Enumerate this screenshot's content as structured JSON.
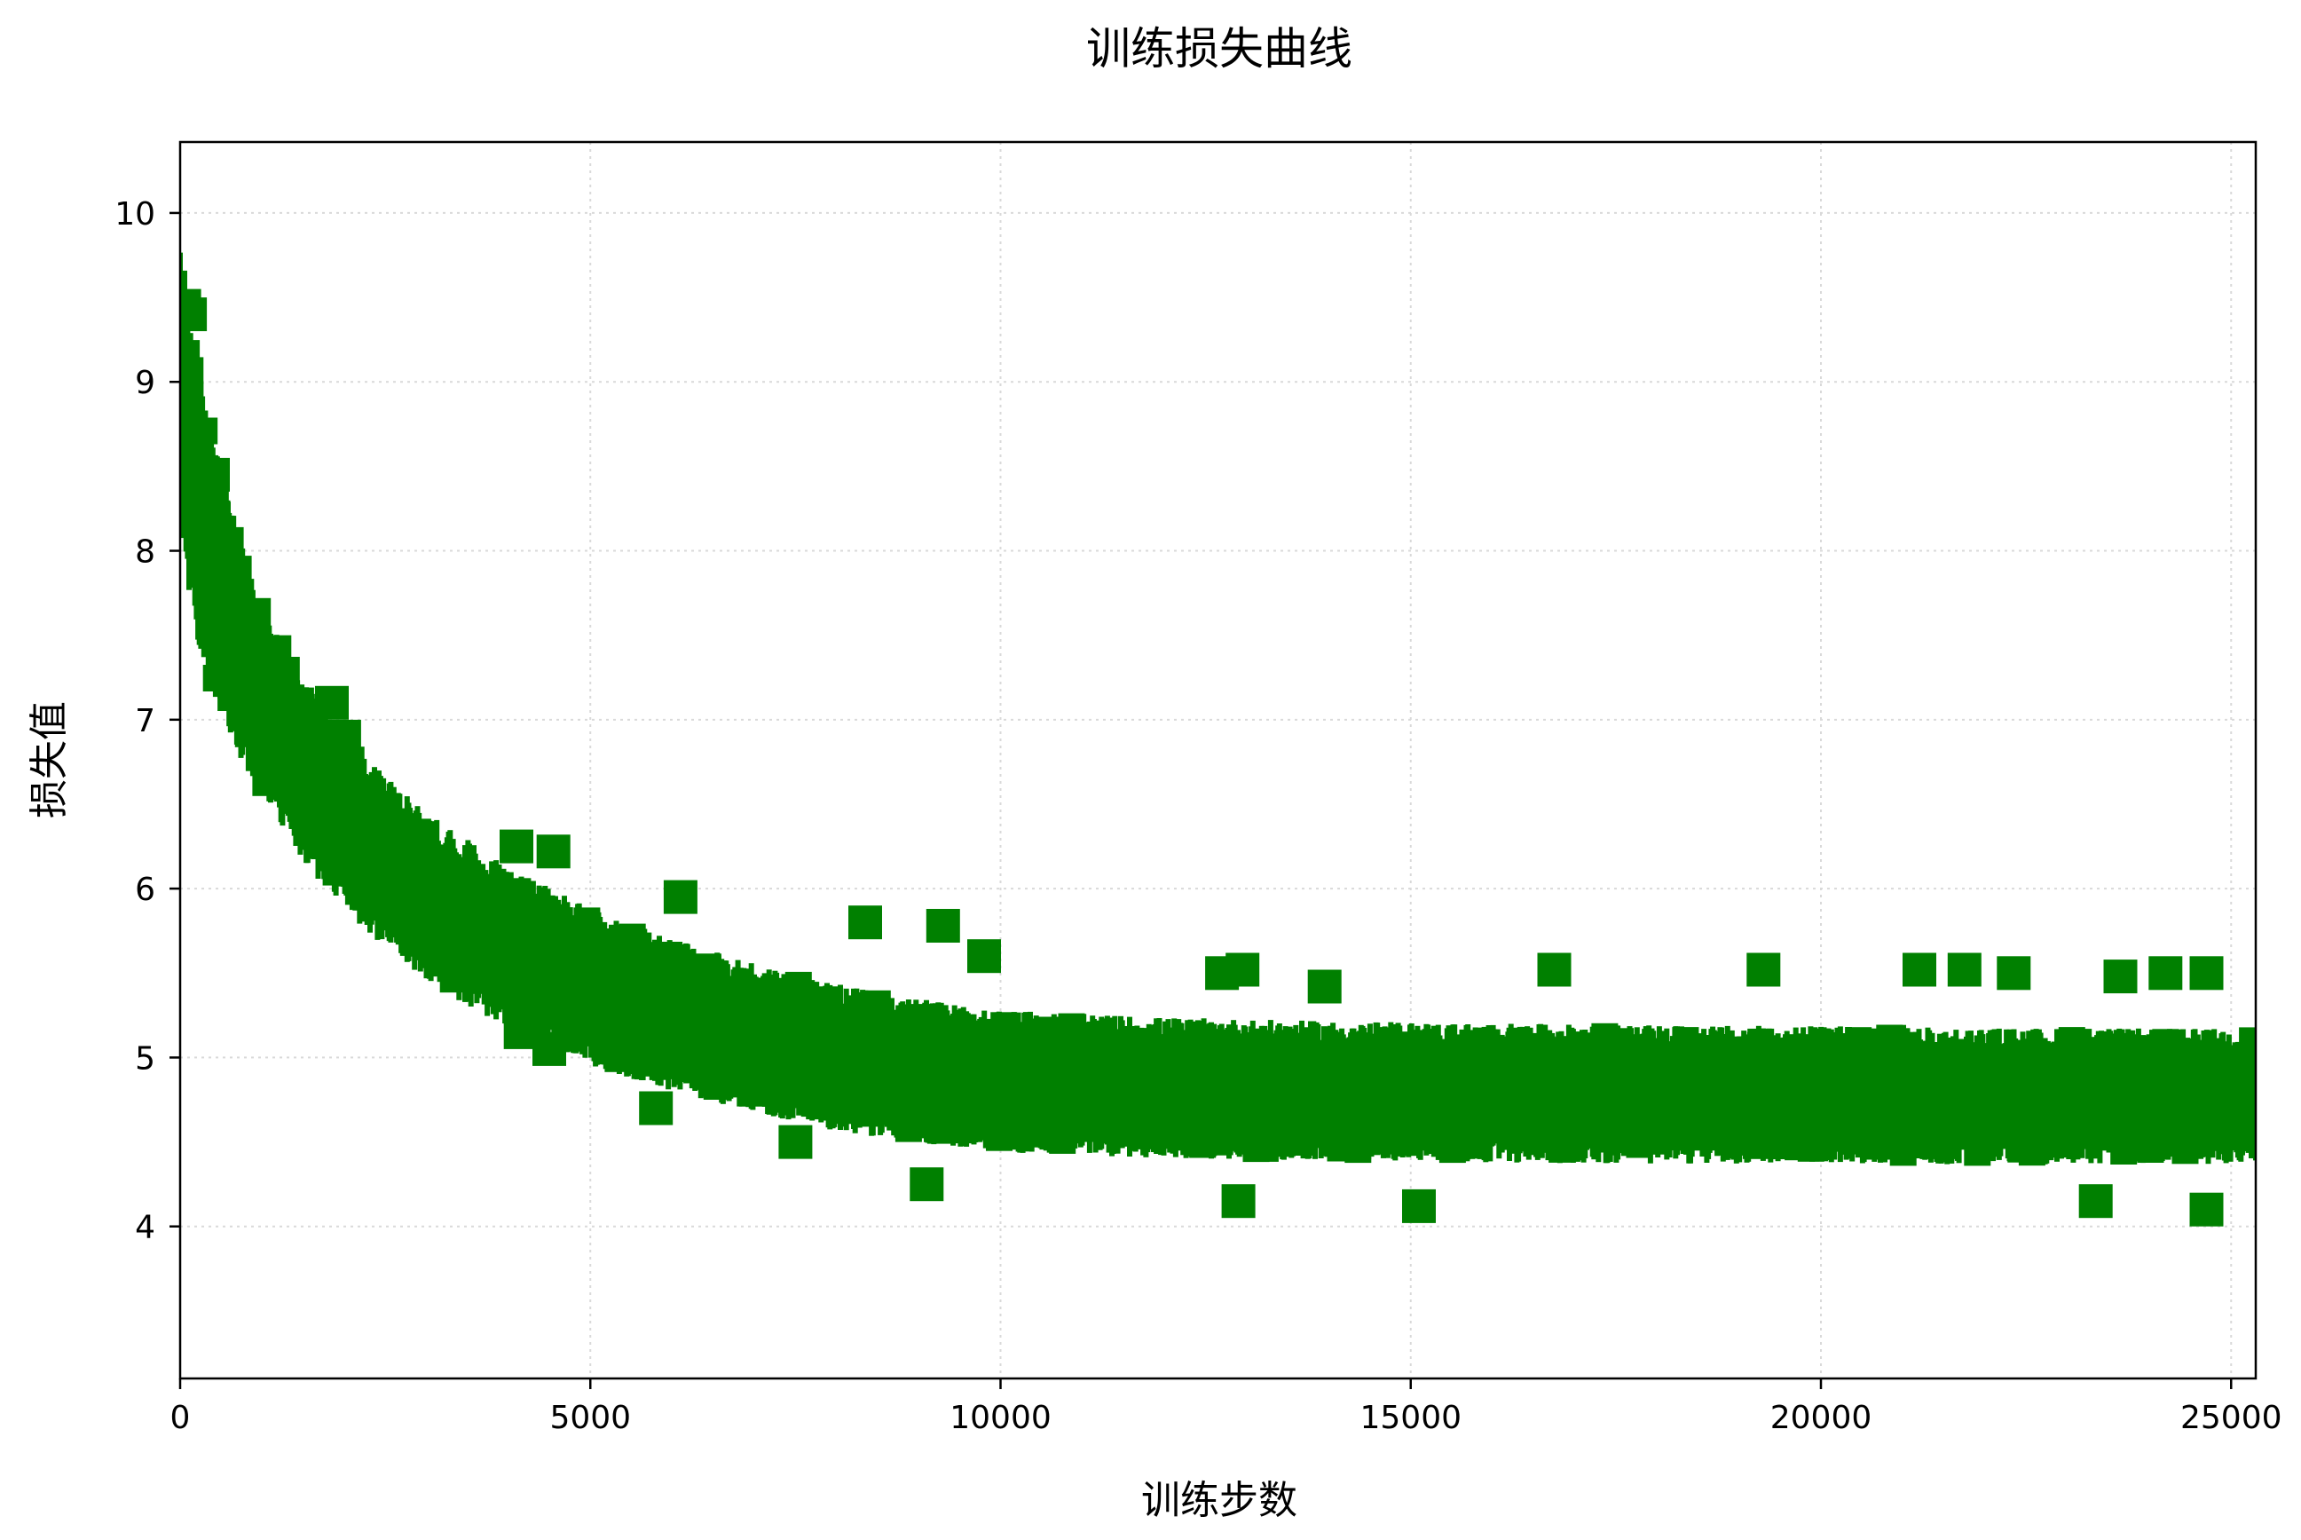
{
  "chart_data": {
    "type": "scatter",
    "title": "训练损失曲线",
    "xlabel": "训练步数",
    "ylabel": "损失值",
    "xlim": [
      0,
      25300
    ],
    "ylim": [
      3.1,
      10.42
    ],
    "x_ticks": [
      0,
      5000,
      10000,
      15000,
      20000,
      25000
    ],
    "y_ticks": [
      4,
      5,
      6,
      7,
      8,
      9,
      10
    ],
    "grid": true,
    "grid_style": "dotted",
    "marker": "square",
    "series": [
      {
        "color": "#008000",
        "summary": "dense noisy loss trace decaying from about 9.5 near step 0 to about 4.8 after step 10000",
        "trend": {
          "x": [
            0,
            100,
            250,
            500,
            750,
            1000,
            1500,
            2000,
            2500,
            3000,
            4000,
            5000,
            6000,
            7000,
            8000,
            9000,
            10000,
            12000,
            14000,
            16000,
            18000,
            20000,
            22000,
            24000,
            25300
          ],
          "y": [
            9.0,
            8.6,
            8.2,
            7.75,
            7.4,
            7.1,
            6.7,
            6.4,
            6.15,
            5.95,
            5.65,
            5.42,
            5.25,
            5.12,
            5.0,
            4.92,
            4.86,
            4.82,
            4.8,
            4.79,
            4.78,
            4.78,
            4.77,
            4.77,
            4.77
          ]
        },
        "spread": {
          "x": [
            0,
            1000,
            3000,
            6000,
            10000,
            25300
          ],
          "half_width": [
            0.9,
            0.55,
            0.5,
            0.45,
            0.42,
            0.4
          ]
        },
        "outliers": [
          {
            "x": 50,
            "y": 9.45
          },
          {
            "x": 120,
            "y": 9.4
          },
          {
            "x": 400,
            "y": 8.45
          },
          {
            "x": 900,
            "y": 7.62
          },
          {
            "x": 1150,
            "y": 7.4
          },
          {
            "x": 1850,
            "y": 7.1
          },
          {
            "x": 2000,
            "y": 6.9
          },
          {
            "x": 4100,
            "y": 6.25
          },
          {
            "x": 4550,
            "y": 6.22
          },
          {
            "x": 6100,
            "y": 5.95
          },
          {
            "x": 8350,
            "y": 5.8
          },
          {
            "x": 9300,
            "y": 5.78
          },
          {
            "x": 9800,
            "y": 5.6
          },
          {
            "x": 12700,
            "y": 5.5
          },
          {
            "x": 12950,
            "y": 5.52
          },
          {
            "x": 13950,
            "y": 5.42
          },
          {
            "x": 16750,
            "y": 5.52
          },
          {
            "x": 19300,
            "y": 5.52
          },
          {
            "x": 21200,
            "y": 5.52
          },
          {
            "x": 21750,
            "y": 5.52
          },
          {
            "x": 22350,
            "y": 5.5
          },
          {
            "x": 23650,
            "y": 5.48
          },
          {
            "x": 24200,
            "y": 5.5
          },
          {
            "x": 24700,
            "y": 5.5
          },
          {
            "x": 4150,
            "y": 5.15
          },
          {
            "x": 4500,
            "y": 5.05
          },
          {
            "x": 5800,
            "y": 4.7
          },
          {
            "x": 7500,
            "y": 4.5
          },
          {
            "x": 9100,
            "y": 4.25
          },
          {
            "x": 12900,
            "y": 4.15
          },
          {
            "x": 15100,
            "y": 4.12
          },
          {
            "x": 23350,
            "y": 4.15
          },
          {
            "x": 24700,
            "y": 4.1
          }
        ]
      }
    ]
  }
}
